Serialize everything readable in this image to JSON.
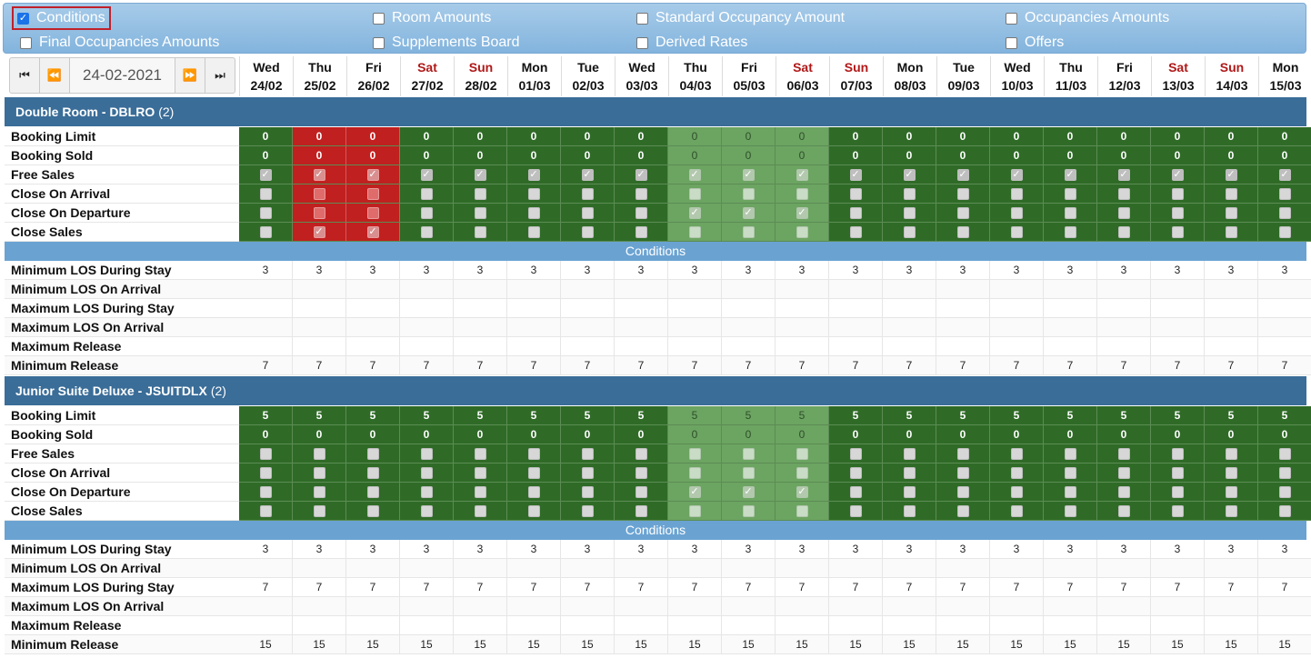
{
  "options": [
    {
      "label": "Conditions",
      "checked": true
    },
    {
      "label": "Room Amounts",
      "checked": false
    },
    {
      "label": "Standard Occupancy Amount",
      "checked": false
    },
    {
      "label": "Occupancies Amounts",
      "checked": false
    },
    {
      "label": "Final Occupancies Amounts",
      "checked": false
    },
    {
      "label": "Supplements Board",
      "checked": false
    },
    {
      "label": "Derived Rates",
      "checked": false
    },
    {
      "label": "Offers",
      "checked": false
    }
  ],
  "nav": {
    "date": "24-02-2021",
    "first": "⏮",
    "prev": "⏪",
    "next": "⏩",
    "last": "⏭"
  },
  "days": [
    {
      "dn": "Wed",
      "dd": "24/02",
      "we": false
    },
    {
      "dn": "Thu",
      "dd": "25/02",
      "we": false
    },
    {
      "dn": "Fri",
      "dd": "26/02",
      "we": false
    },
    {
      "dn": "Sat",
      "dd": "27/02",
      "we": true
    },
    {
      "dn": "Sun",
      "dd": "28/02",
      "we": true
    },
    {
      "dn": "Mon",
      "dd": "01/03",
      "we": false
    },
    {
      "dn": "Tue",
      "dd": "02/03",
      "we": false
    },
    {
      "dn": "Wed",
      "dd": "03/03",
      "we": false
    },
    {
      "dn": "Thu",
      "dd": "04/03",
      "we": false
    },
    {
      "dn": "Fri",
      "dd": "05/03",
      "we": false
    },
    {
      "dn": "Sat",
      "dd": "06/03",
      "we": true
    },
    {
      "dn": "Sun",
      "dd": "07/03",
      "we": true
    },
    {
      "dn": "Mon",
      "dd": "08/03",
      "we": false
    },
    {
      "dn": "Tue",
      "dd": "09/03",
      "we": false
    },
    {
      "dn": "Wed",
      "dd": "10/03",
      "we": false
    },
    {
      "dn": "Thu",
      "dd": "11/03",
      "we": false
    },
    {
      "dn": "Fri",
      "dd": "12/03",
      "we": false
    },
    {
      "dn": "Sat",
      "dd": "13/03",
      "we": true
    },
    {
      "dn": "Sun",
      "dd": "14/03",
      "we": true
    },
    {
      "dn": "Mon",
      "dd": "15/03",
      "we": false
    }
  ],
  "rooms": [
    {
      "name": "Double Room - DBLRO",
      "count": "(2)",
      "status": {
        "red": [
          1,
          2
        ],
        "light": [
          8,
          9,
          10
        ]
      },
      "rows": [
        {
          "label": "Booking Limit",
          "type": "num",
          "values": [
            "0",
            "0",
            "0",
            "0",
            "0",
            "0",
            "0",
            "0",
            "0",
            "0",
            "0",
            "0",
            "0",
            "0",
            "0",
            "0",
            "0",
            "0",
            "0",
            "0"
          ]
        },
        {
          "label": "Booking Sold",
          "type": "num",
          "values": [
            "0",
            "0",
            "0",
            "0",
            "0",
            "0",
            "0",
            "0",
            "0",
            "0",
            "0",
            "0",
            "0",
            "0",
            "0",
            "0",
            "0",
            "0",
            "0",
            "0"
          ]
        },
        {
          "label": "Free Sales",
          "type": "check",
          "values": [
            1,
            1,
            1,
            1,
            1,
            1,
            1,
            1,
            1,
            1,
            1,
            1,
            1,
            1,
            1,
            1,
            1,
            1,
            1,
            1
          ]
        },
        {
          "label": "Close On Arrival",
          "type": "check",
          "values": [
            0,
            0,
            0,
            0,
            0,
            0,
            0,
            0,
            0,
            0,
            0,
            0,
            0,
            0,
            0,
            0,
            0,
            0,
            0,
            0
          ]
        },
        {
          "label": "Close On Departure",
          "type": "check",
          "values": [
            0,
            0,
            0,
            0,
            0,
            0,
            0,
            0,
            1,
            1,
            1,
            0,
            0,
            0,
            0,
            0,
            0,
            0,
            0,
            0
          ]
        },
        {
          "label": "Close Sales",
          "type": "check",
          "values": [
            0,
            1,
            1,
            0,
            0,
            0,
            0,
            0,
            0,
            0,
            0,
            0,
            0,
            0,
            0,
            0,
            0,
            0,
            0,
            0
          ]
        }
      ],
      "conditions_title": "Conditions",
      "conditions": [
        {
          "label": "Minimum LOS During Stay",
          "values": [
            "3",
            "3",
            "3",
            "3",
            "3",
            "3",
            "3",
            "3",
            "3",
            "3",
            "3",
            "3",
            "3",
            "3",
            "3",
            "3",
            "3",
            "3",
            "3",
            "3"
          ]
        },
        {
          "label": "Minimum LOS On Arrival",
          "values": [
            "",
            "",
            "",
            "",
            "",
            "",
            "",
            "",
            "",
            "",
            "",
            "",
            "",
            "",
            "",
            "",
            "",
            "",
            "",
            ""
          ]
        },
        {
          "label": "Maximum LOS During Stay",
          "values": [
            "",
            "",
            "",
            "",
            "",
            "",
            "",
            "",
            "",
            "",
            "",
            "",
            "",
            "",
            "",
            "",
            "",
            "",
            "",
            ""
          ]
        },
        {
          "label": "Maximum LOS On Arrival",
          "values": [
            "",
            "",
            "",
            "",
            "",
            "",
            "",
            "",
            "",
            "",
            "",
            "",
            "",
            "",
            "",
            "",
            "",
            "",
            "",
            ""
          ]
        },
        {
          "label": "Maximum Release",
          "values": [
            "",
            "",
            "",
            "",
            "",
            "",
            "",
            "",
            "",
            "",
            "",
            "",
            "",
            "",
            "",
            "",
            "",
            "",
            "",
            ""
          ]
        },
        {
          "label": "Minimum Release",
          "values": [
            "7",
            "7",
            "7",
            "7",
            "7",
            "7",
            "7",
            "7",
            "7",
            "7",
            "7",
            "7",
            "7",
            "7",
            "7",
            "7",
            "7",
            "7",
            "7",
            "7"
          ]
        }
      ]
    },
    {
      "name": "Junior Suite Deluxe - JSUITDLX",
      "count": "(2)",
      "status": {
        "red": [],
        "light": [
          8,
          9,
          10
        ]
      },
      "rows": [
        {
          "label": "Booking Limit",
          "type": "num",
          "values": [
            "5",
            "5",
            "5",
            "5",
            "5",
            "5",
            "5",
            "5",
            "5",
            "5",
            "5",
            "5",
            "5",
            "5",
            "5",
            "5",
            "5",
            "5",
            "5",
            "5"
          ]
        },
        {
          "label": "Booking Sold",
          "type": "num",
          "values": [
            "0",
            "0",
            "0",
            "0",
            "0",
            "0",
            "0",
            "0",
            "0",
            "0",
            "0",
            "0",
            "0",
            "0",
            "0",
            "0",
            "0",
            "0",
            "0",
            "0"
          ]
        },
        {
          "label": "Free Sales",
          "type": "check",
          "values": [
            0,
            0,
            0,
            0,
            0,
            0,
            0,
            0,
            0,
            0,
            0,
            0,
            0,
            0,
            0,
            0,
            0,
            0,
            0,
            0
          ]
        },
        {
          "label": "Close On Arrival",
          "type": "check",
          "values": [
            0,
            0,
            0,
            0,
            0,
            0,
            0,
            0,
            0,
            0,
            0,
            0,
            0,
            0,
            0,
            0,
            0,
            0,
            0,
            0
          ]
        },
        {
          "label": "Close On Departure",
          "type": "check",
          "values": [
            0,
            0,
            0,
            0,
            0,
            0,
            0,
            0,
            1,
            1,
            1,
            0,
            0,
            0,
            0,
            0,
            0,
            0,
            0,
            0
          ]
        },
        {
          "label": "Close Sales",
          "type": "check",
          "values": [
            0,
            0,
            0,
            0,
            0,
            0,
            0,
            0,
            0,
            0,
            0,
            0,
            0,
            0,
            0,
            0,
            0,
            0,
            0,
            0
          ]
        }
      ],
      "conditions_title": "Conditions",
      "conditions": [
        {
          "label": "Minimum LOS During Stay",
          "values": [
            "3",
            "3",
            "3",
            "3",
            "3",
            "3",
            "3",
            "3",
            "3",
            "3",
            "3",
            "3",
            "3",
            "3",
            "3",
            "3",
            "3",
            "3",
            "3",
            "3"
          ]
        },
        {
          "label": "Minimum LOS On Arrival",
          "values": [
            "",
            "",
            "",
            "",
            "",
            "",
            "",
            "",
            "",
            "",
            "",
            "",
            "",
            "",
            "",
            "",
            "",
            "",
            "",
            ""
          ]
        },
        {
          "label": "Maximum LOS During Stay",
          "values": [
            "7",
            "7",
            "7",
            "7",
            "7",
            "7",
            "7",
            "7",
            "7",
            "7",
            "7",
            "7",
            "7",
            "7",
            "7",
            "7",
            "7",
            "7",
            "7",
            "7"
          ]
        },
        {
          "label": "Maximum LOS On Arrival",
          "values": [
            "",
            "",
            "",
            "",
            "",
            "",
            "",
            "",
            "",
            "",
            "",
            "",
            "",
            "",
            "",
            "",
            "",
            "",
            "",
            ""
          ]
        },
        {
          "label": "Maximum Release",
          "values": [
            "",
            "",
            "",
            "",
            "",
            "",
            "",
            "",
            "",
            "",
            "",
            "",
            "",
            "",
            "",
            "",
            "",
            "",
            "",
            ""
          ]
        },
        {
          "label": "Minimum Release",
          "values": [
            "15",
            "15",
            "15",
            "15",
            "15",
            "15",
            "15",
            "15",
            "15",
            "15",
            "15",
            "15",
            "15",
            "15",
            "15",
            "15",
            "15",
            "15",
            "15",
            "15"
          ]
        }
      ]
    }
  ]
}
